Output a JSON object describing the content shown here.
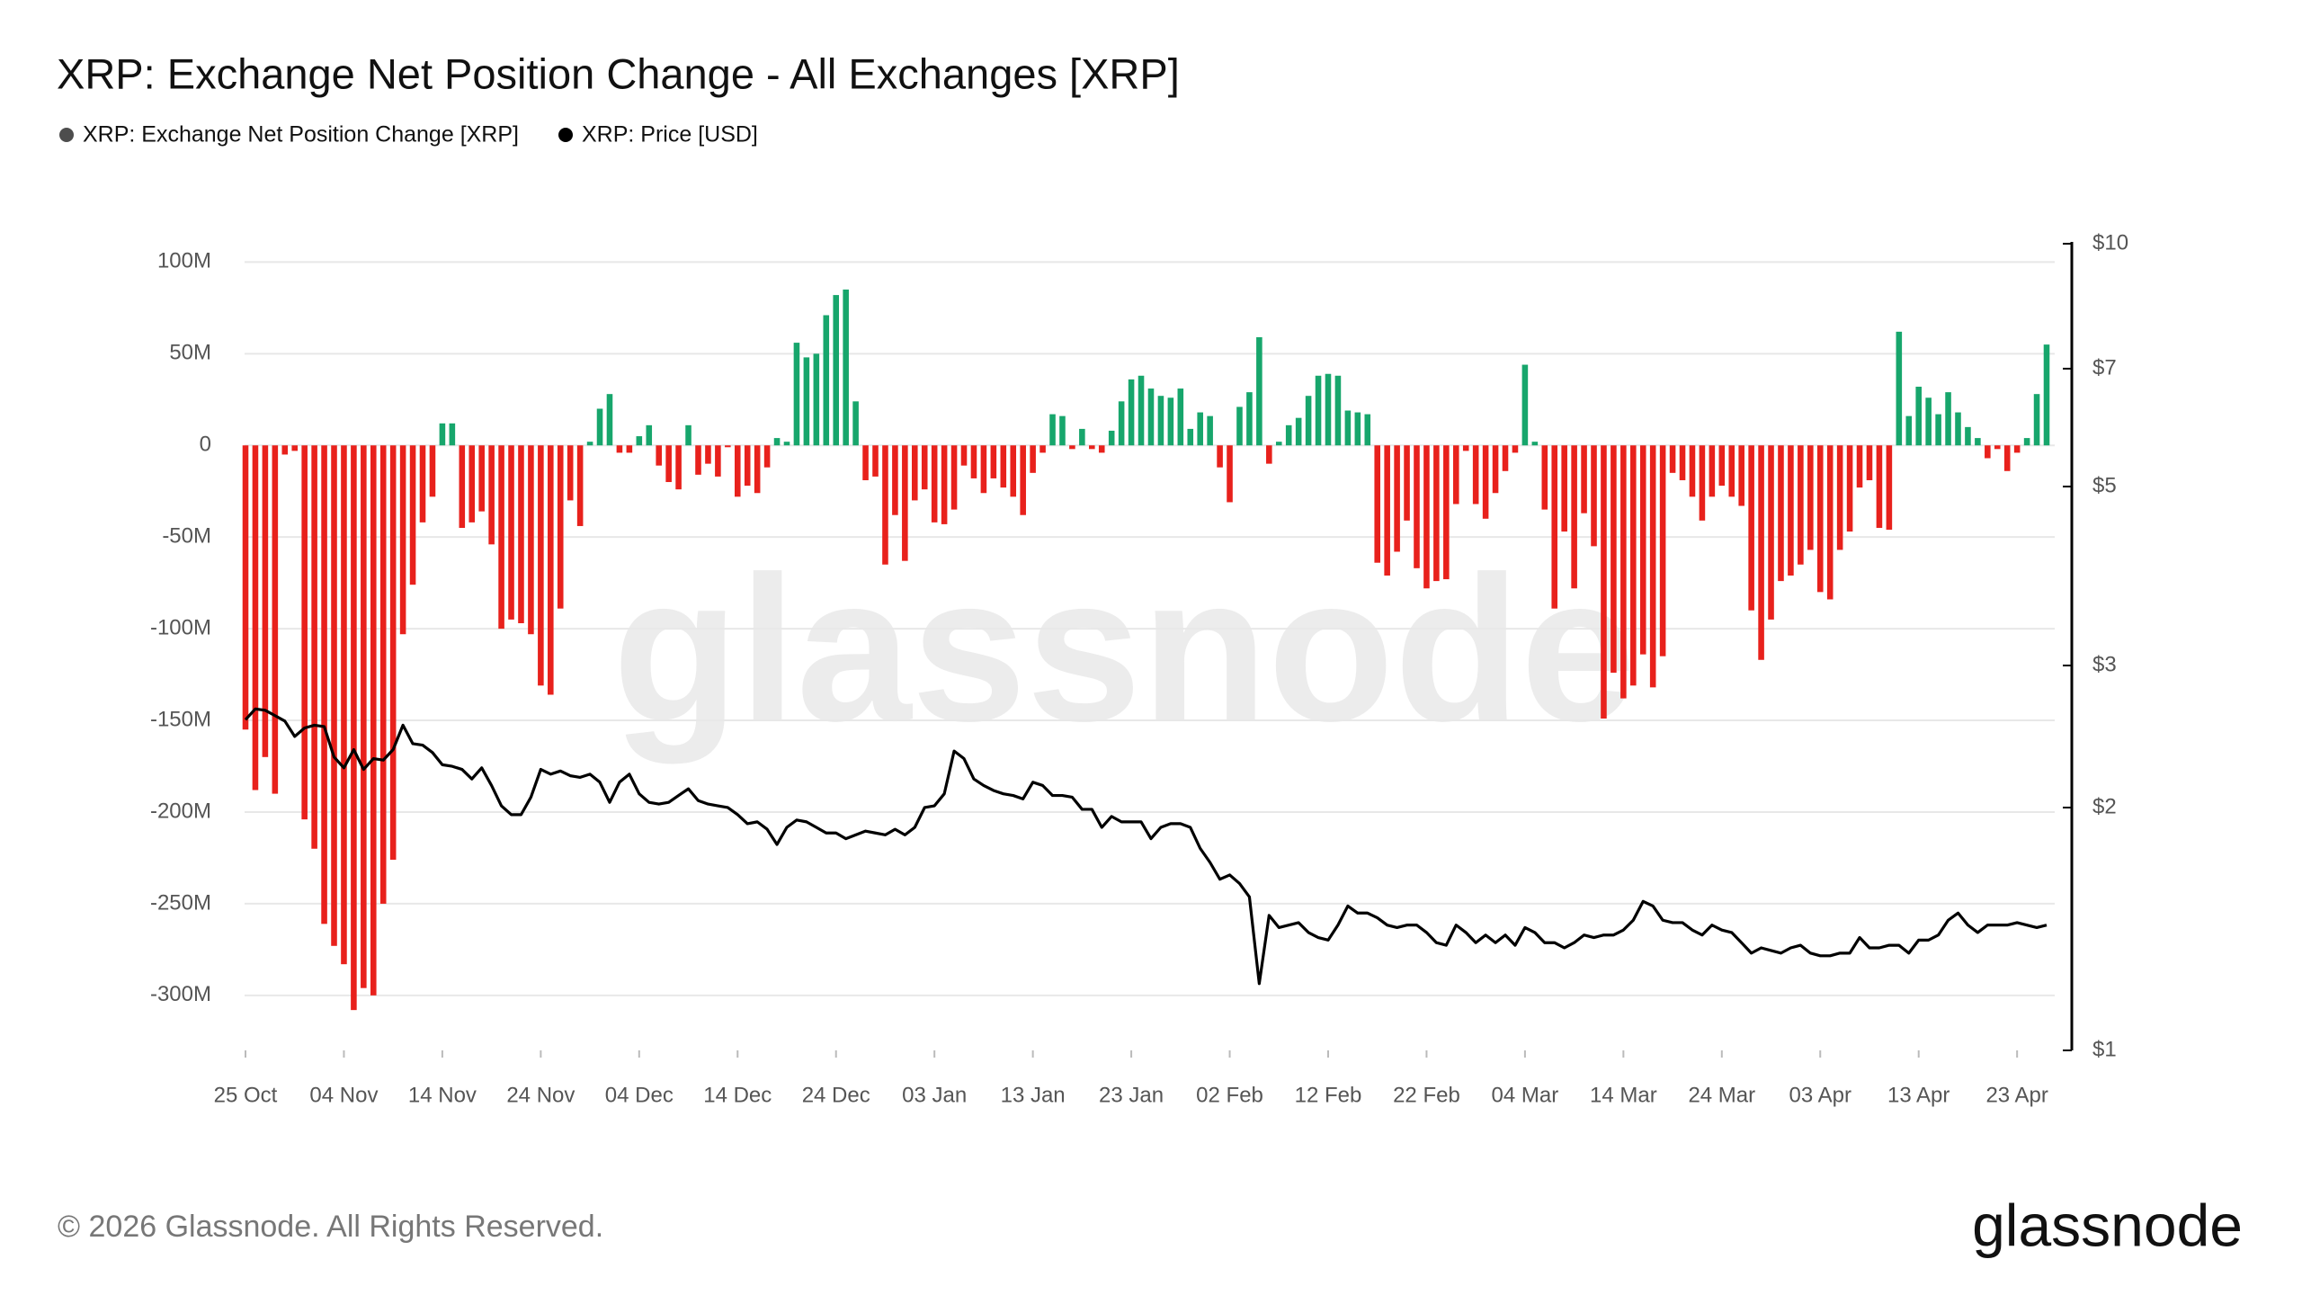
{
  "title": "XRP: Exchange Net Position Change - All Exchanges [XRP]",
  "footer": "© 2026 Glassnode. All Rights Reserved.",
  "logo": "glassnode",
  "watermark": "glassnode",
  "chart_data": {
    "type": "bar",
    "categories": [
      "25 Oct",
      null,
      null,
      null,
      null,
      null,
      null,
      null,
      null,
      null,
      "04 Nov",
      null,
      null,
      null,
      null,
      null,
      null,
      null,
      null,
      null,
      "14 Nov",
      null,
      null,
      null,
      null,
      null,
      null,
      null,
      null,
      null,
      "24 Nov",
      null,
      null,
      null,
      null,
      null,
      null,
      null,
      null,
      null,
      "04 Dec",
      null,
      null,
      null,
      null,
      null,
      null,
      null,
      null,
      null,
      "14 Dec",
      null,
      null,
      null,
      null,
      null,
      null,
      null,
      null,
      null,
      "24 Dec",
      null,
      null,
      null,
      null,
      null,
      null,
      null,
      null,
      null,
      "03 Jan",
      null,
      null,
      null,
      null,
      null,
      null,
      null,
      null,
      null,
      "13 Jan",
      null,
      null,
      null,
      null,
      null,
      null,
      null,
      null,
      null,
      "23 Jan",
      null,
      null,
      null,
      null,
      null,
      null,
      null,
      null,
      null,
      "02 Feb",
      null,
      null,
      null,
      null,
      null,
      null,
      null,
      null,
      null,
      "12 Feb",
      null,
      null,
      null,
      null,
      null,
      null,
      null,
      null,
      null,
      "22 Feb",
      null,
      null,
      null,
      null,
      null,
      null,
      null,
      null,
      null,
      "04 Mar",
      null,
      null,
      null,
      null,
      null,
      null,
      null,
      null,
      null,
      "14 Mar",
      null,
      null,
      null,
      null,
      null,
      null,
      null,
      null,
      null,
      "24 Mar",
      null,
      null,
      null,
      null,
      null,
      null,
      null,
      null,
      null,
      "03 Apr",
      null,
      null,
      null,
      null,
      null,
      null,
      null,
      null,
      null,
      "13 Apr",
      null,
      null,
      null,
      null,
      null,
      null,
      null,
      null,
      null,
      "23 Apr",
      null,
      null,
      null
    ],
    "series": [
      {
        "name": "XRP: Exchange Net Position Change [XRP]",
        "color": "#4d4d4d",
        "positive_color": "#17a66c",
        "negative_color": "#e8211c",
        "values": [
          -155000000,
          -188000000,
          -170000000,
          -190000000,
          -5000000,
          -3000000,
          -204000000,
          -220000000,
          -261000000,
          -273000000,
          -283000000,
          -308000000,
          -296000000,
          -300000000,
          -250000000,
          -226000000,
          -103000000,
          -76000000,
          -42000000,
          -28000000,
          12000000,
          12000000,
          -45000000,
          -42000000,
          -36000000,
          -54000000,
          -100000000,
          -95000000,
          -97000000,
          -103000000,
          -131000000,
          -136000000,
          -89000000,
          -30000000,
          -44000000,
          2000000,
          20000000,
          28000000,
          -4000000,
          -4000000,
          5000000,
          11000000,
          -11000000,
          -20000000,
          -24000000,
          11000000,
          -16000000,
          -10000000,
          -17000000,
          -1000000,
          -28000000,
          -22000000,
          -26000000,
          -12000000,
          4000000,
          2000000,
          56000000,
          48000000,
          50000000,
          71000000,
          82000000,
          85000000,
          24000000,
          -19000000,
          -17000000,
          -65000000,
          -38000000,
          -63000000,
          -30000000,
          -24000000,
          -42000000,
          -43000000,
          -35000000,
          -11000000,
          -18000000,
          -26000000,
          -18000000,
          -23000000,
          -28000000,
          -38000000,
          -15000000,
          -4000000,
          17000000,
          16000000,
          -2000000,
          9000000,
          -2000000,
          -4000000,
          8000000,
          24000000,
          36000000,
          38000000,
          31000000,
          27000000,
          26000000,
          31000000,
          9000000,
          18000000,
          16000000,
          -12000000,
          -31000000,
          21000000,
          29000000,
          59000000,
          -10000000,
          2000000,
          11000000,
          15000000,
          27000000,
          38000000,
          39000000,
          38000000,
          19000000,
          18000000,
          17000000,
          -64000000,
          -71000000,
          -58000000,
          -41000000,
          -67000000,
          -78000000,
          -74000000,
          -73000000,
          -32000000,
          -3000000,
          -32000000,
          -40000000,
          -26000000,
          -14000000,
          -4000000,
          44000000,
          2000000,
          -35000000,
          -89000000,
          -47000000,
          -78000000,
          -37000000,
          -55000000,
          -149000000,
          -124000000,
          -138000000,
          -131000000,
          -114000000,
          -132000000,
          -115000000,
          -15000000,
          -19000000,
          -28000000,
          -41000000,
          -28000000,
          -22000000,
          -28000000,
          -33000000,
          -90000000,
          -117000000,
          -95000000,
          -74000000,
          -71000000,
          -65000000,
          -57000000,
          -80000000,
          -84000000,
          -57000000,
          -47000000,
          -23000000,
          -19000000,
          -45000000,
          -46000000,
          62000000,
          16000000,
          32000000,
          26000000,
          17000000,
          29000000,
          18000000,
          10000000,
          4000000,
          -7000000,
          -2000000,
          -14000000,
          -4000000,
          4000000,
          28000000,
          55000000
        ]
      },
      {
        "name": "XRP: Price [USD]",
        "color": "#000000",
        "type": "line",
        "axis": "y2",
        "values": [
          2.57,
          2.65,
          2.64,
          2.6,
          2.56,
          2.45,
          2.51,
          2.53,
          2.52,
          2.31,
          2.24,
          2.36,
          2.23,
          2.3,
          2.29,
          2.36,
          2.53,
          2.4,
          2.39,
          2.34,
          2.26,
          2.25,
          2.23,
          2.17,
          2.24,
          2.13,
          2.01,
          1.96,
          1.96,
          2.06,
          2.23,
          2.2,
          2.22,
          2.19,
          2.18,
          2.2,
          2.15,
          2.03,
          2.15,
          2.2,
          2.08,
          2.03,
          2.02,
          2.03,
          2.07,
          2.11,
          2.04,
          2.02,
          2.01,
          2.0,
          1.96,
          1.91,
          1.92,
          1.88,
          1.8,
          1.89,
          1.93,
          1.92,
          1.89,
          1.86,
          1.86,
          1.83,
          1.85,
          1.87,
          1.86,
          1.85,
          1.88,
          1.85,
          1.89,
          2.0,
          2.01,
          2.08,
          2.35,
          2.3,
          2.17,
          2.13,
          2.1,
          2.08,
          2.07,
          2.05,
          2.15,
          2.13,
          2.07,
          2.07,
          2.06,
          1.99,
          1.99,
          1.89,
          1.95,
          1.92,
          1.92,
          1.92,
          1.83,
          1.89,
          1.91,
          1.91,
          1.89,
          1.78,
          1.71,
          1.63,
          1.65,
          1.61,
          1.55,
          1.21,
          1.47,
          1.42,
          1.43,
          1.44,
          1.4,
          1.38,
          1.37,
          1.43,
          1.51,
          1.48,
          1.48,
          1.46,
          1.43,
          1.42,
          1.43,
          1.43,
          1.4,
          1.36,
          1.35,
          1.43,
          1.4,
          1.36,
          1.39,
          1.36,
          1.39,
          1.35,
          1.42,
          1.4,
          1.36,
          1.36,
          1.34,
          1.36,
          1.39,
          1.38,
          1.39,
          1.39,
          1.41,
          1.45,
          1.53,
          1.51,
          1.45,
          1.44,
          1.44,
          1.41,
          1.39,
          1.43,
          1.41,
          1.4,
          1.36,
          1.32,
          1.34,
          1.33,
          1.32,
          1.34,
          1.35,
          1.32,
          1.31,
          1.31,
          1.32,
          1.32,
          1.38,
          1.34,
          1.34,
          1.35,
          1.35,
          1.32,
          1.37,
          1.37,
          1.39,
          1.45,
          1.48,
          1.43,
          1.4,
          1.43,
          1.43,
          1.43,
          1.44,
          1.43,
          1.42,
          1.43
        ]
      }
    ],
    "ylim": [
      -330000000,
      110000000
    ],
    "yticks": [
      {
        "value": 100000000,
        "label": "100M"
      },
      {
        "value": 50000000,
        "label": "50M"
      },
      0,
      {
        "value": -50000000,
        "label": "-50M"
      },
      {
        "value": -100000000,
        "label": "-100M"
      },
      {
        "value": -150000000,
        "label": "-150M"
      },
      {
        "value": -200000000,
        "label": "-200M"
      },
      {
        "value": -250000000,
        "label": "-250M"
      },
      {
        "value": -300000000,
        "label": "-300M"
      }
    ],
    "y2lim": [
      1,
      10
    ],
    "y2scale": "log",
    "y2ticks": [
      {
        "value": 10,
        "label": "$10"
      },
      {
        "value": 7,
        "label": "$7"
      },
      {
        "value": 5,
        "label": "$5"
      },
      {
        "value": 3,
        "label": "$3"
      },
      {
        "value": 2,
        "label": "$2"
      },
      {
        "value": 1,
        "label": "$1"
      }
    ],
    "grid": true
  }
}
